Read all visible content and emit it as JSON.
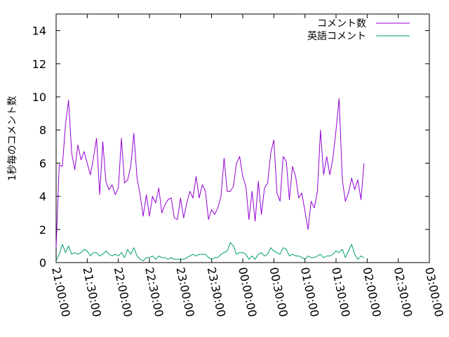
{
  "chart_data": {
    "type": "line",
    "title": "",
    "xlabel": "",
    "ylabel": "1秒毎のコメント数",
    "ylim": [
      0,
      15
    ],
    "xlim": [
      "21:00:00",
      "03:00:00"
    ],
    "grid": false,
    "legend": "top-right",
    "y_ticks": [
      0,
      2,
      4,
      6,
      8,
      10,
      12,
      14
    ],
    "x_ticks": [
      "21:00:00",
      "21:30:00",
      "22:00:00",
      "22:30:00",
      "23:00:00",
      "23:30:00",
      "00:00:00",
      "00:30:00",
      "01:00:00",
      "01:30:00",
      "02:00:00",
      "02:30:00",
      "03:00:00"
    ],
    "x_start": "21:00:00",
    "x_interval_seconds": 180,
    "series": [
      {
        "name": "コメント数",
        "color": "#9400d3",
        "values": [
          0.9,
          5.9,
          5.8,
          8.3,
          9.8,
          6.6,
          5.6,
          7.1,
          6.2,
          6.7,
          6.0,
          5.3,
          6.3,
          7.5,
          4.1,
          7.3,
          4.9,
          4.4,
          4.7,
          4.1,
          4.5,
          7.5,
          4.8,
          5.0,
          5.8,
          7.8,
          5.1,
          4.1,
          2.8,
          4.1,
          2.8,
          4.0,
          3.6,
          4.5,
          3.0,
          3.5,
          3.8,
          3.9,
          2.7,
          2.6,
          3.9,
          2.7,
          3.6,
          4.3,
          3.9,
          5.2,
          3.9,
          4.7,
          4.3,
          2.6,
          3.2,
          2.9,
          3.3,
          4.0,
          6.3,
          4.3,
          4.3,
          4.6,
          6.0,
          6.4,
          5.2,
          4.6,
          2.6,
          4.3,
          2.5,
          4.9,
          2.9,
          4.5,
          4.8,
          6.6,
          7.4,
          4.2,
          3.7,
          6.4,
          6.1,
          3.8,
          5.8,
          5.2,
          3.9,
          4.2,
          3.1,
          2.0,
          3.7,
          3.3,
          4.3,
          8.0,
          5.3,
          6.4,
          5.3,
          6.3,
          8.0,
          9.9,
          5.0,
          3.7,
          4.2,
          5.1,
          4.4,
          5.0,
          3.8,
          6.0
        ]
      },
      {
        "name": "英語コメント",
        "color": "#009e73",
        "values": [
          0.1,
          0.5,
          1.1,
          0.6,
          1.0,
          0.5,
          0.6,
          0.5,
          0.6,
          0.8,
          0.7,
          0.4,
          0.6,
          0.6,
          0.4,
          0.5,
          0.7,
          0.5,
          0.4,
          0.5,
          0.4,
          0.6,
          0.3,
          0.8,
          0.5,
          0.9,
          0.4,
          0.2,
          0.1,
          0.3,
          0.3,
          0.4,
          0.2,
          0.4,
          0.3,
          0.3,
          0.2,
          0.3,
          0.2,
          0.2,
          0.2,
          0.2,
          0.3,
          0.4,
          0.5,
          0.4,
          0.5,
          0.5,
          0.5,
          0.3,
          0.2,
          0.3,
          0.3,
          0.5,
          0.6,
          0.7,
          1.2,
          1.0,
          0.5,
          0.6,
          0.6,
          0.5,
          0.2,
          0.4,
          0.2,
          0.5,
          0.6,
          0.4,
          0.5,
          0.9,
          0.7,
          0.6,
          0.5,
          0.9,
          0.8,
          0.4,
          0.5,
          0.4,
          0.4,
          0.3,
          0.2,
          0.4,
          0.3,
          0.3,
          0.4,
          0.5,
          0.3,
          0.4,
          0.4,
          0.5,
          0.7,
          0.6,
          0.8,
          0.3,
          0.7,
          1.1,
          0.5,
          0.2,
          0.4,
          0.3
        ]
      }
    ]
  }
}
